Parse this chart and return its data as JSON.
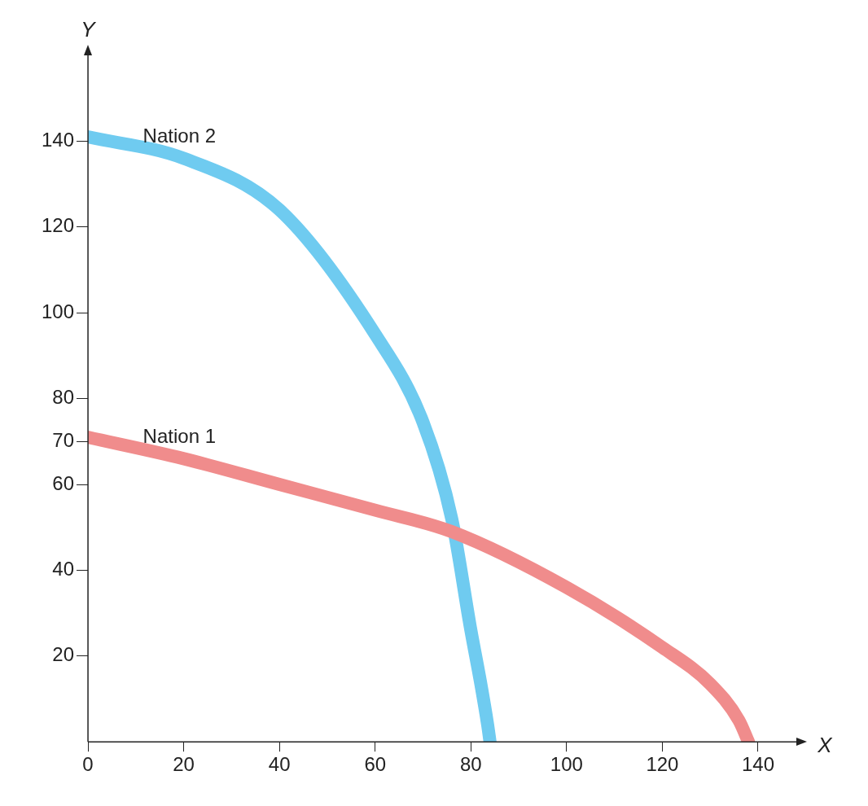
{
  "chart_data": {
    "type": "line",
    "xlabel": "X",
    "ylabel": "Y",
    "xlim": [
      0,
      148
    ],
    "ylim": [
      0,
      160
    ],
    "xticks": [
      0,
      20,
      40,
      60,
      80,
      100,
      120,
      140
    ],
    "yticks": [
      20,
      40,
      60,
      70,
      80,
      100,
      120,
      140
    ],
    "grid": false,
    "legend": false,
    "marker": "none",
    "line_style": "solid",
    "series": [
      {
        "name": "Nation 1",
        "color": "#f08c8c",
        "x": [
          0,
          20,
          40,
          60,
          76,
          100,
          120,
          130,
          136,
          138
        ],
        "values": [
          71,
          66,
          60,
          54,
          49,
          36,
          22,
          13.5,
          5,
          0
        ]
      },
      {
        "name": "Nation 2",
        "color": "#6fcbf0",
        "x": [
          0,
          20,
          40,
          60,
          70,
          76,
          80,
          82,
          83.5,
          84
        ],
        "values": [
          141,
          136,
          124,
          95,
          74.5,
          52,
          26,
          14,
          4,
          0
        ]
      }
    ]
  }
}
